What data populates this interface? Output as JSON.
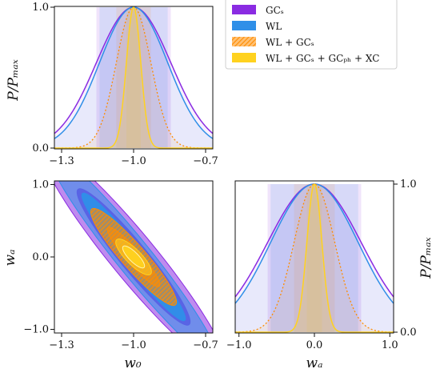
{
  "chart_data": {
    "type": "corner",
    "legend": {
      "placement": "top-right",
      "entries": [
        {
          "label": "GCₛ",
          "color": "#8a2be2",
          "style": "fill"
        },
        {
          "label": "WL",
          "color": "#2f8fe8",
          "style": "fill"
        },
        {
          "label": "WL + GCₛ",
          "color": "#ff8c00",
          "style": "hatched"
        },
        {
          "label": "WL + GCₛ + GCₚₕ + XC",
          "color": "#ffd21f",
          "style": "fill"
        }
      ]
    },
    "params": {
      "w0": {
        "label": "w₀",
        "fiducial": -1.0,
        "range": [
          -1.33,
          -0.67
        ],
        "ticks": [
          "−1.3",
          "−1.0",
          "−0.7"
        ],
        "tick_values": [
          -1.3,
          -1.0,
          -0.7
        ]
      },
      "wa": {
        "label": "wₐ",
        "fiducial": 0.0,
        "range": [
          -1.05,
          1.05
        ],
        "ticks": [
          "−1.0",
          "0.0",
          "1.0"
        ],
        "tick_values": [
          -1.0,
          0.0,
          1.0
        ]
      }
    },
    "marginal_ylabel": "P/Pₘₐₓ",
    "marginal_yticks": [
      "0.0",
      "1.0"
    ],
    "marginal_ytick_values": [
      0.0,
      1.0
    ],
    "series": [
      {
        "name": "GCₛ",
        "color": "#8a2be2",
        "sigma_w0": 0.155,
        "sigma_wa": 0.62,
        "correlation": -0.95
      },
      {
        "name": "WL",
        "color": "#2f8fe8",
        "sigma_w0": 0.142,
        "sigma_wa": 0.58,
        "correlation": -0.965
      },
      {
        "name": "WL + GCₛ",
        "color": "#ff8c00",
        "sigma_w0": 0.072,
        "sigma_wa": 0.27,
        "correlation": -0.93
      },
      {
        "name": "WL + GCₛ + GCₚₕ + XC",
        "color": "#ffd21f",
        "sigma_w0": 0.03,
        "sigma_wa": 0.1,
        "correlation": -0.82
      }
    ]
  }
}
